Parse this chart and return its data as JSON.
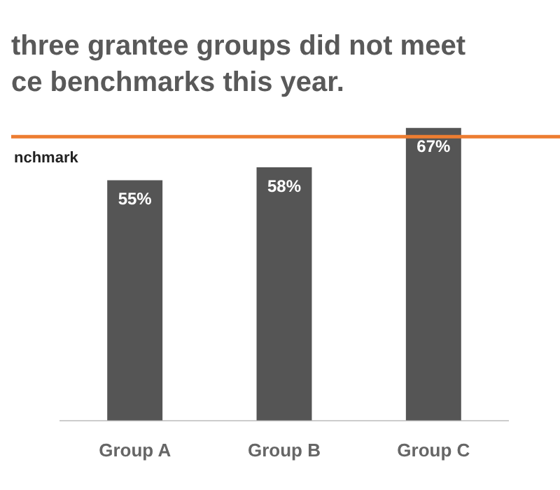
{
  "chart_data": {
    "type": "bar",
    "title": "three grantee groups did not meet\nce benchmarks this year.",
    "categories": [
      "Group A",
      "Group B",
      "Group C"
    ],
    "values": [
      55,
      58,
      67
    ],
    "color": "#555555",
    "value_labels": [
      "55%",
      "58%",
      "67%"
    ],
    "tick_labels": "x",
    "grid": false,
    "legend": false,
    "ref_lines": [
      {
        "axis": "y",
        "value": 65,
        "label": "nchmark",
        "color": "#ed7d31"
      }
    ]
  }
}
